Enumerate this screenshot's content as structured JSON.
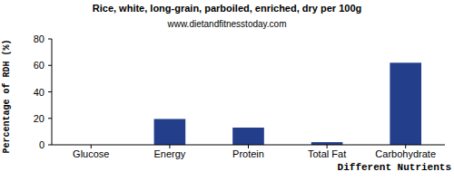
{
  "chart_data": {
    "type": "bar",
    "title": "Rice, white, long-grain, parboiled, enriched, dry per 100g",
    "subtitle": "www.dietandfitnesstoday.com",
    "x_label": "Different Nutrients",
    "y_label": "Percentage of RDH (%)",
    "categories": [
      "Glucose",
      "Energy",
      "Protein",
      "Total Fat",
      "Carbohydrate"
    ],
    "values": [
      0,
      19.5,
      13,
      2,
      62
    ],
    "color": "#233f8c",
    "ylim": [
      0,
      80
    ],
    "yticks": [
      0,
      20,
      40,
      60,
      80
    ],
    "grid": false
  }
}
